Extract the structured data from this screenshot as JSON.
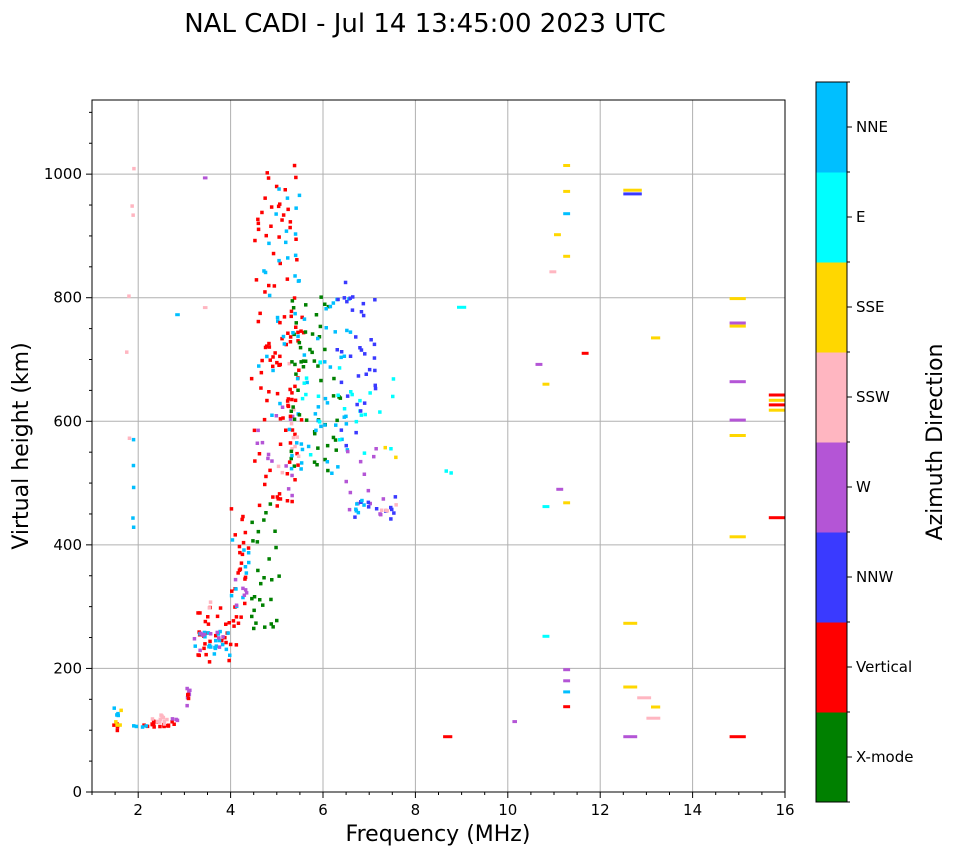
{
  "chart_data": {
    "type": "scatter",
    "title": "NAL CADI - Jul 14 13:45:00 2023 UTC",
    "xlabel": "Frequency (MHz)",
    "ylabel": "Virtual height (km)",
    "xlim": [
      1.0,
      16.0
    ],
    "ylim": [
      0,
      1120
    ],
    "xticks": [
      2,
      4,
      6,
      8,
      10,
      12,
      14,
      16
    ],
    "yticks": [
      0,
      200,
      400,
      600,
      800,
      1000
    ],
    "grid": true,
    "colorbar": {
      "label": "Azimuth Direction",
      "categories": [
        "X-mode",
        "Vertical",
        "NNW",
        "W",
        "SSW",
        "SSE",
        "E",
        "NNE"
      ],
      "colors": {
        "X-mode": "#008000",
        "Vertical": "#ff0000",
        "NNW": "#3a3aff",
        "W": "#b455d6",
        "SSW": "#ffb6c1",
        "SSE": "#ffd700",
        "E": "#00ffff",
        "NNE": "#00bfff"
      }
    },
    "clusters": [
      {
        "category": "Vertical",
        "f": [
          1.45,
          1.6
        ],
        "h": [
          95,
          110
        ],
        "n": 5
      },
      {
        "category": "NNE",
        "f": [
          1.45,
          1.6
        ],
        "h": [
          120,
          140
        ],
        "n": 4
      },
      {
        "category": "SSE",
        "f": [
          1.5,
          1.65
        ],
        "h": [
          90,
          140
        ],
        "n": 4
      },
      {
        "category": "Vertical",
        "f": [
          2.0,
          2.8
        ],
        "h": [
          105,
          115
        ],
        "n": 18
      },
      {
        "category": "SSW",
        "f": [
          2.3,
          2.7
        ],
        "h": [
          110,
          125
        ],
        "n": 10
      },
      {
        "category": "NNE",
        "f": [
          1.9,
          2.2
        ],
        "h": [
          102,
          110
        ],
        "n": 4
      },
      {
        "category": "W",
        "f": [
          2.7,
          2.85
        ],
        "h": [
          112,
          120
        ],
        "n": 3
      },
      {
        "category": "W",
        "f": [
          3.05,
          3.15
        ],
        "h": [
          130,
          170
        ],
        "n": 6
      },
      {
        "category": "Vertical",
        "f": [
          3.05,
          3.15
        ],
        "h": [
          145,
          160
        ],
        "n": 3
      },
      {
        "category": "SSW",
        "f": [
          1.75,
          1.95
        ],
        "h": [
          570,
          1010
        ],
        "n": 6
      },
      {
        "category": "NNE",
        "f": [
          1.8,
          1.95
        ],
        "h": [
          405,
          585
        ],
        "n": 5
      },
      {
        "category": "Vertical",
        "f": [
          3.2,
          4.2
        ],
        "h": [
          210,
          300
        ],
        "n": 30
      },
      {
        "category": "NNE",
        "f": [
          3.2,
          4.0
        ],
        "h": [
          220,
          260
        ],
        "n": 20
      },
      {
        "category": "W",
        "f": [
          3.2,
          3.9
        ],
        "h": [
          225,
          260
        ],
        "n": 10
      },
      {
        "category": "SSW",
        "f": [
          3.4,
          3.6
        ],
        "h": [
          295,
          310
        ],
        "n": 2
      },
      {
        "category": "Vertical",
        "f": [
          4.0,
          4.4
        ],
        "h": [
          260,
          460
        ],
        "n": 24
      },
      {
        "category": "NNE",
        "f": [
          4.0,
          4.4
        ],
        "h": [
          300,
          410
        ],
        "n": 10
      },
      {
        "category": "W",
        "f": [
          4.1,
          4.35
        ],
        "h": [
          290,
          370
        ],
        "n": 6
      },
      {
        "category": "X-mode",
        "f": [
          4.45,
          5.1
        ],
        "h": [
          255,
          470
        ],
        "n": 28
      },
      {
        "category": "Vertical",
        "f": [
          4.45,
          5.5
        ],
        "h": [
          460,
          1015
        ],
        "n": 90
      },
      {
        "category": "NNE",
        "f": [
          4.6,
          5.5
        ],
        "h": [
          560,
          980
        ],
        "n": 30
      },
      {
        "category": "W",
        "f": [
          4.5,
          5.4
        ],
        "h": [
          470,
          650
        ],
        "n": 14
      },
      {
        "category": "SSW",
        "f": [
          5.0,
          5.5
        ],
        "h": [
          500,
          700
        ],
        "n": 10
      },
      {
        "category": "Vertical",
        "f": [
          5.0,
          5.6
        ],
        "h": [
          600,
          800
        ],
        "n": 20
      },
      {
        "category": "X-mode",
        "f": [
          5.3,
          6.4
        ],
        "h": [
          520,
          820
        ],
        "n": 55
      },
      {
        "category": "NNE",
        "f": [
          5.3,
          6.6
        ],
        "h": [
          510,
          810
        ],
        "n": 45
      },
      {
        "category": "E",
        "f": [
          5.5,
          7.6
        ],
        "h": [
          540,
          700
        ],
        "n": 26
      },
      {
        "category": "NNW",
        "f": [
          6.3,
          7.2
        ],
        "h": [
          560,
          840
        ],
        "n": 35
      },
      {
        "category": "W",
        "f": [
          6.5,
          7.6
        ],
        "h": [
          440,
          560
        ],
        "n": 14
      },
      {
        "category": "NNW",
        "f": [
          6.5,
          7.6
        ],
        "h": [
          440,
          480
        ],
        "n": 12
      },
      {
        "category": "NNE",
        "f": [
          6.6,
          6.9
        ],
        "h": [
          450,
          475
        ],
        "n": 6
      },
      {
        "category": "SSW",
        "f": [
          7.2,
          7.6
        ],
        "h": [
          445,
          470
        ],
        "n": 4
      },
      {
        "category": "SSE",
        "f": [
          7.3,
          7.6
        ],
        "h": [
          540,
          560
        ],
        "n": 2
      },
      {
        "category": "E",
        "f": [
          8.5,
          8.8
        ],
        "h": [
          515,
          520
        ],
        "n": 2
      },
      {
        "category": "E",
        "f": [
          8.9,
          9.1
        ],
        "h": [
          783,
          786
        ],
        "n": 1
      },
      {
        "category": "Vertical",
        "f": [
          8.6,
          8.8
        ],
        "h": [
          88,
          91
        ],
        "n": 1
      },
      {
        "category": "NNE",
        "f": [
          2.8,
          2.9
        ],
        "h": [
          770,
          775
        ],
        "n": 1
      },
      {
        "category": "SSW",
        "f": [
          3.4,
          3.5
        ],
        "h": [
          782,
          786
        ],
        "n": 1
      },
      {
        "category": "W",
        "f": [
          3.4,
          3.5
        ],
        "h": [
          992,
          996
        ],
        "n": 1
      },
      {
        "category": "W",
        "f": [
          10.1,
          10.2
        ],
        "h": [
          112,
          116
        ],
        "n": 1
      },
      {
        "category": "E",
        "f": [
          10.75,
          10.9
        ],
        "h": [
          250,
          254
        ],
        "n": 1
      },
      {
        "category": "E",
        "f": [
          10.75,
          10.9
        ],
        "h": [
          460,
          464
        ],
        "n": 1
      },
      {
        "category": "SSE",
        "f": [
          10.75,
          10.9
        ],
        "h": [
          658,
          662
        ],
        "n": 1
      },
      {
        "category": "W",
        "f": [
          10.6,
          10.75
        ],
        "h": [
          690,
          694
        ],
        "n": 1
      },
      {
        "category": "SSW",
        "f": [
          10.9,
          11.05
        ],
        "h": [
          840,
          844
        ],
        "n": 1
      },
      {
        "category": "SSE",
        "f": [
          11.0,
          11.15
        ],
        "h": [
          900,
          904
        ],
        "n": 1
      },
      {
        "category": "W",
        "f": [
          11.05,
          11.2
        ],
        "h": [
          488,
          492
        ],
        "n": 1
      },
      {
        "category": "SSE",
        "f": [
          11.2,
          11.35
        ],
        "h": [
          466,
          470
        ],
        "n": 1
      },
      {
        "category": "Vertical",
        "f": [
          11.2,
          11.35
        ],
        "h": [
          136,
          140
        ],
        "n": 1
      },
      {
        "category": "NNE",
        "f": [
          11.2,
          11.35
        ],
        "h": [
          160,
          164
        ],
        "n": 1
      },
      {
        "category": "W",
        "f": [
          11.2,
          11.35
        ],
        "h": [
          178,
          182
        ],
        "n": 1
      },
      {
        "category": "W",
        "f": [
          11.2,
          11.35
        ],
        "h": [
          196,
          200
        ],
        "n": 1
      },
      {
        "category": "SSE",
        "f": [
          11.2,
          11.35
        ],
        "h": [
          865,
          869
        ],
        "n": 1
      },
      {
        "category": "NNE",
        "f": [
          11.2,
          11.35
        ],
        "h": [
          934,
          938
        ],
        "n": 1
      },
      {
        "category": "SSE",
        "f": [
          11.2,
          11.35
        ],
        "h": [
          970,
          974
        ],
        "n": 1
      },
      {
        "category": "SSE",
        "f": [
          11.2,
          11.35
        ],
        "h": [
          1012,
          1016
        ],
        "n": 1
      },
      {
        "category": "Vertical",
        "f": [
          11.6,
          11.75
        ],
        "h": [
          708,
          712
        ],
        "n": 1
      },
      {
        "category": "SSE",
        "f": [
          12.5,
          12.8
        ],
        "h": [
          270,
          276
        ],
        "n": 1
      },
      {
        "category": "SSE",
        "f": [
          12.5,
          12.8
        ],
        "h": [
          168,
          172
        ],
        "n": 1
      },
      {
        "category": "W",
        "f": [
          12.5,
          12.8
        ],
        "h": [
          88,
          91
        ],
        "n": 1
      },
      {
        "category": "SSE",
        "f": [
          12.5,
          12.9
        ],
        "h": [
          972,
          976
        ],
        "n": 1
      },
      {
        "category": "NNW",
        "f": [
          12.5,
          12.9
        ],
        "h": [
          966,
          970
        ],
        "n": 1
      },
      {
        "category": "SSW",
        "f": [
          12.8,
          13.1
        ],
        "h": [
          150,
          155
        ],
        "n": 1
      },
      {
        "category": "SSE",
        "f": [
          13.1,
          13.3
        ],
        "h": [
          135,
          140
        ],
        "n": 1
      },
      {
        "category": "SSW",
        "f": [
          13.0,
          13.3
        ],
        "h": [
          118,
          121
        ],
        "n": 1
      },
      {
        "category": "SSE",
        "f": [
          13.1,
          13.3
        ],
        "h": [
          733,
          737
        ],
        "n": 1
      },
      {
        "category": "Vertical",
        "f": [
          14.8,
          15.15
        ],
        "h": [
          88,
          91
        ],
        "n": 1
      },
      {
        "category": "SSE",
        "f": [
          14.8,
          15.15
        ],
        "h": [
          411,
          415
        ],
        "n": 1
      },
      {
        "category": "SSE",
        "f": [
          14.8,
          15.15
        ],
        "h": [
          575,
          579
        ],
        "n": 1
      },
      {
        "category": "W",
        "f": [
          14.8,
          15.15
        ],
        "h": [
          600,
          604
        ],
        "n": 1
      },
      {
        "category": "W",
        "f": [
          14.8,
          15.15
        ],
        "h": [
          662,
          666
        ],
        "n": 1
      },
      {
        "category": "SSE",
        "f": [
          14.8,
          15.15
        ],
        "h": [
          752,
          756
        ],
        "n": 1
      },
      {
        "category": "W",
        "f": [
          14.8,
          15.15
        ],
        "h": [
          757,
          761
        ],
        "n": 1
      },
      {
        "category": "SSE",
        "f": [
          14.8,
          15.15
        ],
        "h": [
          797,
          800
        ],
        "n": 1
      },
      {
        "category": "Vertical",
        "f": [
          15.65,
          16.0
        ],
        "h": [
          442,
          446
        ],
        "n": 1
      },
      {
        "category": "Vertical",
        "f": [
          15.65,
          16.0
        ],
        "h": [
          640,
          645
        ],
        "n": 1
      },
      {
        "category": "SSE",
        "f": [
          15.65,
          16.0
        ],
        "h": [
          632,
          636
        ],
        "n": 1
      },
      {
        "category": "Vertical",
        "f": [
          15.65,
          16.0
        ],
        "h": [
          624,
          629
        ],
        "n": 1
      },
      {
        "category": "SSE",
        "f": [
          15.65,
          16.0
        ],
        "h": [
          616,
          620
        ],
        "n": 1
      }
    ]
  }
}
